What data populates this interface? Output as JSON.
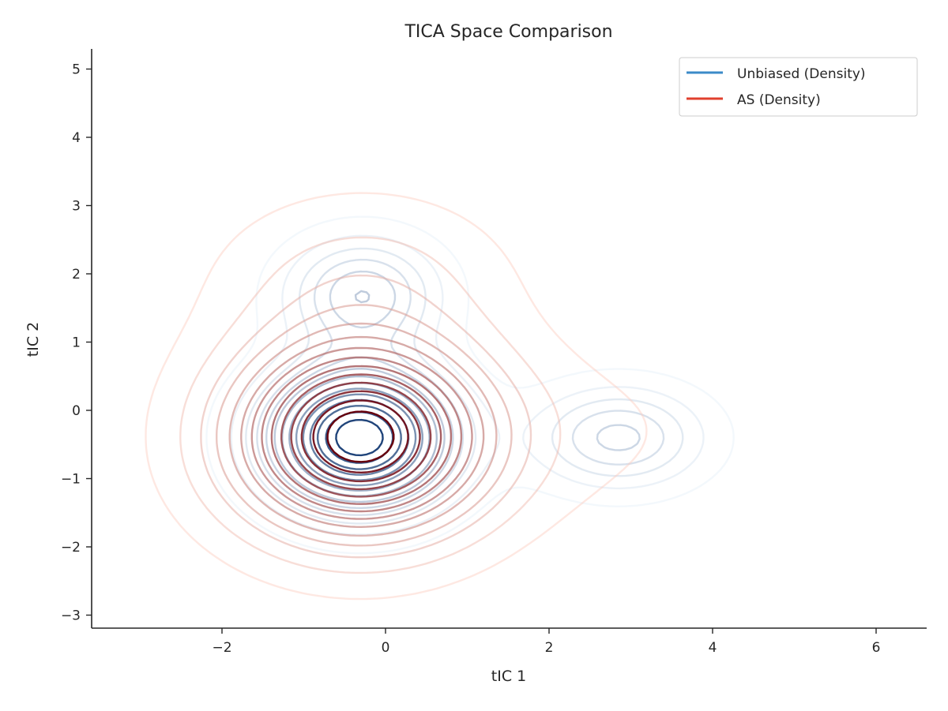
{
  "chart_data": {
    "type": "contour",
    "title": "TICA Space Comparison",
    "xlabel": "tIC 1",
    "ylabel": "tIC 2",
    "xlim": [
      -3.5,
      6.6
    ],
    "ylim": [
      -3.2,
      5.3
    ],
    "xticks": [
      -2,
      0,
      2,
      4,
      6
    ],
    "yticks": [
      -3,
      -2,
      -1,
      0,
      1,
      2,
      3,
      4,
      5
    ],
    "xtick_labels": [
      "−2",
      "0",
      "2",
      "4",
      "6"
    ],
    "ytick_labels": [
      "−3",
      "−2",
      "−1",
      "0",
      "1",
      "2",
      "3",
      "4",
      "5"
    ],
    "grid": false,
    "legend_position": "top-right",
    "series": [
      {
        "name": "Unbiased (Density)",
        "color": "#3b8bc8",
        "colormap": "Blues",
        "modes": [
          {
            "cx": -0.32,
            "cy": -0.4,
            "sx": 0.75,
            "sy": 0.68,
            "w": 1.0
          },
          {
            "cx": -0.28,
            "cy": 1.7,
            "sx": 0.62,
            "sy": 0.55,
            "w": 0.38
          },
          {
            "cx": 2.85,
            "cy": -0.4,
            "sx": 0.7,
            "sy": 0.5,
            "w": 0.34
          }
        ]
      },
      {
        "name": "AS (Density)",
        "color": "#e0402e",
        "colormap": "Reds",
        "modes": [
          {
            "cx": -0.32,
            "cy": -0.4,
            "sx": 1.05,
            "sy": 0.95,
            "w": 1.0
          },
          {
            "cx": -0.28,
            "cy": 1.9,
            "sx": 1.15,
            "sy": 0.85,
            "w": 0.14
          },
          {
            "cx": 2.3,
            "cy": -0.3,
            "sx": 1.5,
            "sy": 0.9,
            "w": 0.05
          }
        ]
      }
    ]
  }
}
